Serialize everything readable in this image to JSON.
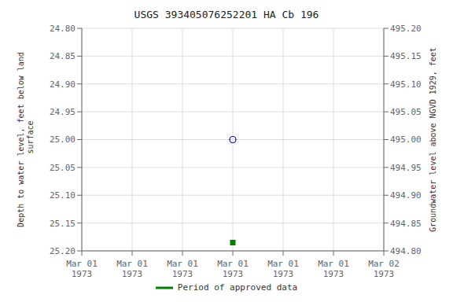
{
  "chart_data": {
    "type": "scatter",
    "title": "USGS 393405076252201 HA Cb 196",
    "y_label": "Depth to water level, feet below land\n surface",
    "y2_label": "Groundwater level above NGVD 1929, feet",
    "categories": [
      "Mar 01\n1973",
      "Mar 01\n1973",
      "Mar 01\n1973",
      "Mar 01\n1973",
      "Mar 01\n1973",
      "Mar 01\n1973",
      "Mar 02\n1973"
    ],
    "series": [
      {
        "color": "blue",
        "marker": "circle",
        "values": [
          null,
          null,
          null,
          25.0,
          null,
          null,
          null
        ]
      },
      {
        "name": "Period of approved data",
        "color": "#008000",
        "marker": "square",
        "values": [
          null,
          null,
          null,
          25.185,
          null,
          null,
          null
        ]
      }
    ],
    "ylim": [
      25.2,
      24.8
    ],
    "yticks": [
      {
        "value": 24.8,
        "label": "24.80"
      },
      {
        "value": 24.85,
        "label": "24.85"
      },
      {
        "value": 24.9,
        "label": "24.90"
      },
      {
        "value": 24.95,
        "label": "24.95"
      },
      {
        "value": 25.0,
        "label": "25.00"
      },
      {
        "value": 25.05,
        "label": "25.05"
      },
      {
        "value": 25.1,
        "label": "25.10"
      },
      {
        "value": 25.15,
        "label": "25.15"
      },
      {
        "value": 25.2,
        "label": "25.20"
      }
    ],
    "y2lim": [
      494.8,
      495.2
    ],
    "y2ticks": [
      {
        "value": 495.2,
        "label": "495.20"
      },
      {
        "value": 495.15,
        "label": "495.15"
      },
      {
        "value": 495.1,
        "label": "495.10"
      },
      {
        "value": 495.05,
        "label": "495.05"
      },
      {
        "value": 495.0,
        "label": "495.00"
      },
      {
        "value": 494.95,
        "label": "494.95"
      },
      {
        "value": 494.9,
        "label": "494.90"
      },
      {
        "value": 494.85,
        "label": "494.85"
      },
      {
        "value": 494.8,
        "label": "494.80"
      }
    ],
    "grid": true,
    "legend": "bottom"
  }
}
